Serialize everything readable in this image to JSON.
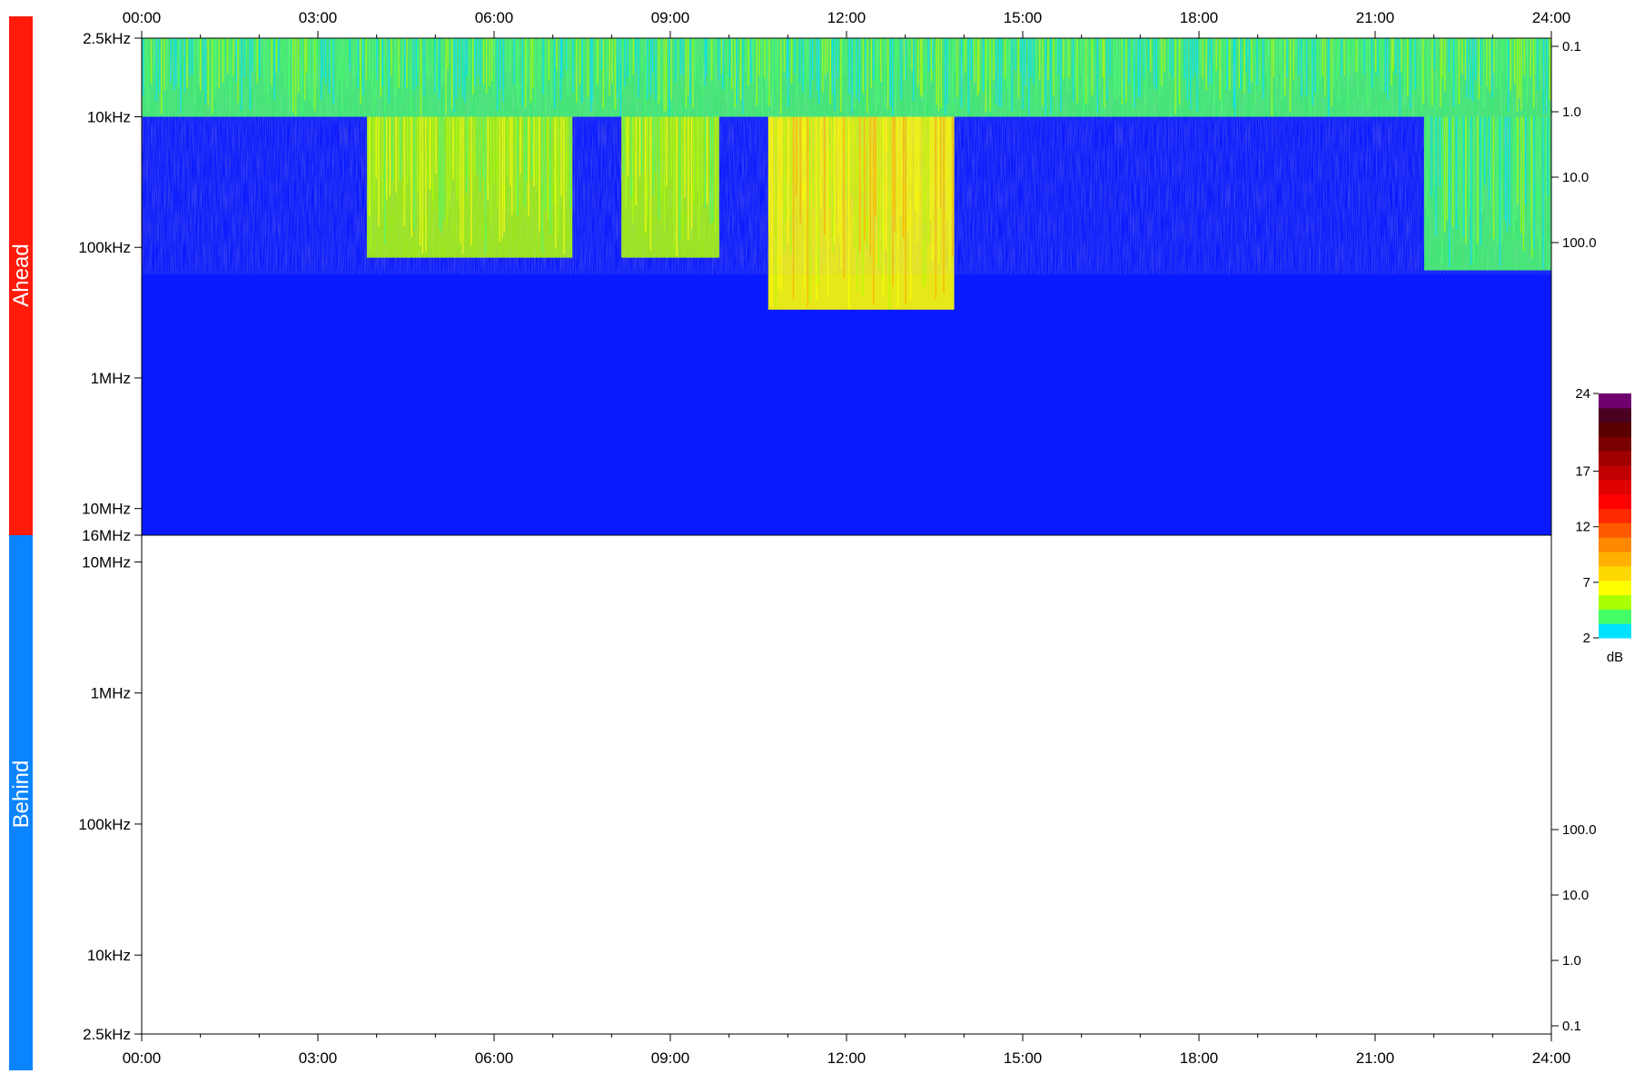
{
  "chart_data": {
    "type": "heatmap",
    "panels": [
      {
        "name": "Ahead",
        "color": "#ff1a0a",
        "y_ticks": [
          "2.5kHz",
          "10kHz",
          "100kHz",
          "1MHz",
          "10MHz",
          "16MHz"
        ],
        "y_right_ticks": [
          "0.1",
          "1.0",
          "10.0",
          "100.0"
        ],
        "has_data": true
      },
      {
        "name": "Behind",
        "color": "#0a84ff",
        "y_ticks": [
          "10MHz",
          "1MHz",
          "100kHz",
          "10kHz",
          "2.5kHz"
        ],
        "y_right_ticks": [
          "100.0",
          "10.0",
          "1.0",
          "0.1"
        ],
        "has_data": false
      }
    ],
    "x_ticks": [
      "00:00",
      "03:00",
      "06:00",
      "09:00",
      "12:00",
      "15:00",
      "18:00",
      "21:00",
      "24:00"
    ],
    "x_range": [
      "00:00",
      "24:00"
    ],
    "colorbar": {
      "unit": "dB",
      "range": [
        2,
        24
      ],
      "ticks": [
        "24",
        "17",
        "12",
        "7",
        "2"
      ],
      "colors": [
        "#00e0ff",
        "#44ff66",
        "#aaff00",
        "#ffff00",
        "#ffd800",
        "#ffb000",
        "#ff8800",
        "#ff5a00",
        "#ff2a00",
        "#ff0000",
        "#e00000",
        "#c00000",
        "#a00000",
        "#7a0000",
        "#5a0000",
        "#4a0020",
        "#700070"
      ]
    },
    "background_color": "#0a1aff",
    "activity_regions": [
      {
        "start": "00:00",
        "end": "24:00",
        "f_low": "2.5kHz",
        "f_high": "10kHz",
        "level": 3
      },
      {
        "start": "03:50",
        "end": "07:20",
        "f_low": "10kHz",
        "f_high": "120kHz",
        "level": 4
      },
      {
        "start": "08:10",
        "end": "09:00",
        "f_low": "10kHz",
        "f_high": "120kHz",
        "level": 4
      },
      {
        "start": "09:00",
        "end": "09:50",
        "f_low": "10kHz",
        "f_high": "120kHz",
        "level": 4
      },
      {
        "start": "10:40",
        "end": "13:50",
        "f_low": "10kHz",
        "f_high": "300kHz",
        "level": 5
      },
      {
        "start": "21:50",
        "end": "24:00",
        "f_low": "10kHz",
        "f_high": "150kHz",
        "level": 3
      }
    ]
  }
}
